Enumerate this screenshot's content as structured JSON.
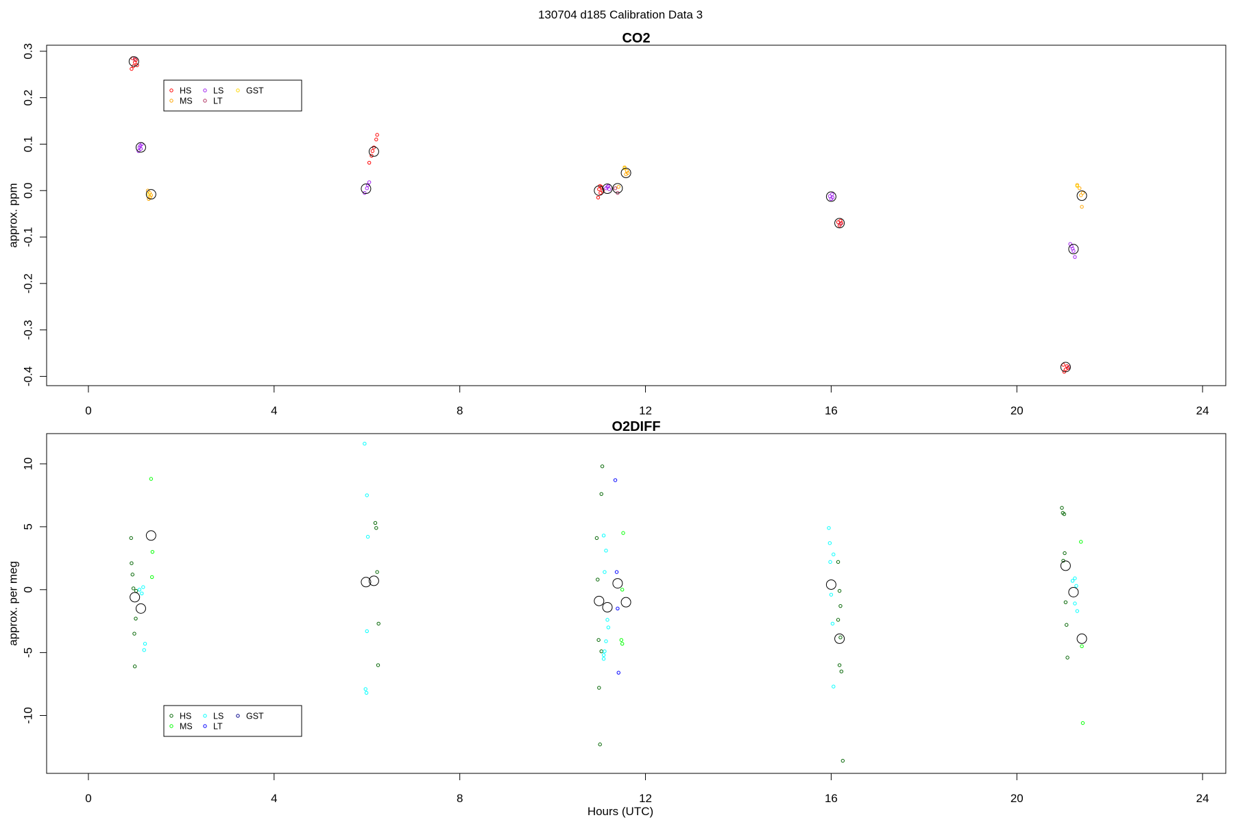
{
  "figure": {
    "title": "130704   d185   Calibration Data 3",
    "xlabel": "Hours (UTC)"
  },
  "chart_data": [
    {
      "type": "scatter",
      "title": "CO2",
      "xlabel": "",
      "ylabel": "approx. ppm",
      "xlim": [
        -0.9,
        24.5
      ],
      "ylim": [
        -0.42,
        0.313
      ],
      "xticks": [
        0,
        4,
        8,
        12,
        16,
        20,
        24
      ],
      "yticks": [
        -0.4,
        -0.3,
        -0.2,
        -0.1,
        0.0,
        0.1,
        0.2,
        0.3
      ],
      "ytick_labels": [
        "-0.4",
        "-0.3",
        "-0.2",
        "-0.1",
        "0.0",
        "0.1",
        "0.2",
        "0.3"
      ],
      "grid": false,
      "legend": {
        "placement": "top-left",
        "columns": 3,
        "entries": [
          "HS",
          "MS",
          "LS",
          "LT",
          "GST"
        ]
      },
      "series": [
        {
          "name": "HS",
          "color": "#ff0000",
          "points": [
            [
              0.93,
              0.262
            ],
            [
              0.97,
              0.268
            ],
            [
              1.0,
              0.276
            ],
            [
              1.02,
              0.281
            ],
            [
              0.95,
              0.285
            ],
            [
              1.05,
              0.27
            ],
            [
              6.05,
              0.06
            ],
            [
              6.1,
              0.075
            ],
            [
              6.15,
              0.093
            ],
            [
              6.2,
              0.11
            ],
            [
              6.22,
              0.12
            ],
            [
              6.12,
              0.085
            ],
            [
              10.98,
              -0.015
            ],
            [
              11.0,
              0.003
            ],
            [
              11.03,
              -0.005
            ],
            [
              11.05,
              0.008
            ],
            [
              11.08,
              0.0
            ],
            [
              11.02,
              0.01
            ],
            [
              16.15,
              -0.068
            ],
            [
              16.18,
              -0.075
            ],
            [
              16.2,
              -0.065
            ],
            [
              16.22,
              -0.07
            ],
            [
              21.02,
              -0.39
            ],
            [
              21.05,
              -0.385
            ],
            [
              21.08,
              -0.378
            ],
            [
              21.1,
              -0.382
            ],
            [
              21.0,
              -0.375
            ]
          ]
        },
        {
          "name": "MS",
          "color": "#ffa500",
          "points": [
            [
              1.3,
              -0.018
            ],
            [
              1.32,
              -0.005
            ],
            [
              1.35,
              -0.01
            ],
            [
              1.28,
              0.0
            ],
            [
              1.33,
              -0.014
            ],
            [
              11.42,
              0.008
            ],
            [
              11.55,
              0.05
            ],
            [
              11.58,
              0.035
            ],
            [
              11.6,
              0.042
            ],
            [
              11.62,
              0.038
            ],
            [
              21.3,
              0.012
            ],
            [
              21.35,
              0.005
            ],
            [
              21.4,
              -0.035
            ],
            [
              21.38,
              -0.01
            ],
            [
              21.42,
              -0.005
            ]
          ]
        },
        {
          "name": "LS",
          "color": "#a020f0",
          "points": [
            [
              1.08,
              0.085
            ],
            [
              1.1,
              0.093
            ],
            [
              1.12,
              0.097
            ],
            [
              1.15,
              0.1
            ],
            [
              1.13,
              0.09
            ],
            [
              5.95,
              -0.005
            ],
            [
              6.0,
              0.005
            ],
            [
              6.02,
              0.012
            ],
            [
              6.05,
              0.018
            ],
            [
              11.15,
              0.005
            ],
            [
              11.18,
              0.008
            ],
            [
              11.2,
              0.01
            ],
            [
              11.22,
              0.003
            ],
            [
              15.97,
              -0.012
            ],
            [
              16.0,
              -0.018
            ],
            [
              16.02,
              -0.008
            ],
            [
              16.03,
              -0.015
            ],
            [
              21.15,
              -0.115
            ],
            [
              21.2,
              -0.125
            ],
            [
              21.25,
              -0.143
            ],
            [
              21.22,
              -0.13
            ],
            [
              21.18,
              -0.12
            ]
          ]
        },
        {
          "name": "LT",
          "color": "#b03060",
          "points": [
            [
              1.0,
              0.283
            ],
            [
              11.35,
              0.005
            ],
            [
              11.4,
              -0.005
            ],
            [
              16.2,
              -0.072
            ],
            [
              21.12,
              -0.38
            ]
          ]
        },
        {
          "name": "GST",
          "color": "#ffd700",
          "points": [
            [
              1.3,
              -0.008
            ],
            [
              11.55,
              0.048
            ],
            [
              21.3,
              0.01
            ]
          ]
        }
      ],
      "means": [
        [
          0.98,
          0.278
        ],
        [
          1.13,
          0.093
        ],
        [
          1.35,
          -0.008
        ],
        [
          5.98,
          0.004
        ],
        [
          6.15,
          0.084
        ],
        [
          11.0,
          0.0
        ],
        [
          11.18,
          0.004
        ],
        [
          11.4,
          0.005
        ],
        [
          11.58,
          0.038
        ],
        [
          16.0,
          -0.013
        ],
        [
          16.18,
          -0.07
        ],
        [
          21.05,
          -0.38
        ],
        [
          21.22,
          -0.126
        ],
        [
          21.4,
          -0.011
        ]
      ]
    },
    {
      "type": "scatter",
      "title": "O2DIFF",
      "xlabel": "Hours (UTC)",
      "ylabel": "approx. per meg",
      "xlim": [
        -0.9,
        24.5
      ],
      "ylim": [
        -14.6,
        12.4
      ],
      "xticks": [
        0,
        4,
        8,
        12,
        16,
        20,
        24
      ],
      "yticks": [
        -10,
        -5,
        0,
        5,
        10
      ],
      "ytick_labels": [
        "-10",
        "-5",
        "0",
        "5",
        "10"
      ],
      "grid": false,
      "legend": {
        "placement": "bottom-left",
        "columns": 3,
        "entries": [
          "HS",
          "MS",
          "LS",
          "LT",
          "GST"
        ]
      },
      "series": [
        {
          "name": "HS",
          "color": "#006400",
          "points": [
            [
              0.92,
              4.1
            ],
            [
              0.93,
              2.1
            ],
            [
              0.95,
              1.2
            ],
            [
              0.97,
              0.1
            ],
            [
              0.99,
              -3.5
            ],
            [
              1.0,
              -6.1
            ],
            [
              1.02,
              -2.3
            ],
            [
              1.03,
              -0.1
            ],
            [
              6.18,
              5.3
            ],
            [
              6.2,
              4.9
            ],
            [
              6.22,
              1.4
            ],
            [
              6.25,
              -2.7
            ],
            [
              6.24,
              -6.0
            ],
            [
              10.95,
              4.1
            ],
            [
              10.97,
              0.8
            ],
            [
              10.99,
              -4.0
            ],
            [
              11.0,
              -7.8
            ],
            [
              11.02,
              -12.3
            ],
            [
              11.05,
              -4.9
            ],
            [
              11.05,
              7.6
            ],
            [
              11.07,
              9.8
            ],
            [
              16.15,
              2.2
            ],
            [
              16.18,
              -0.1
            ],
            [
              16.2,
              -1.3
            ],
            [
              16.15,
              -2.4
            ],
            [
              16.2,
              -3.8
            ],
            [
              16.18,
              -6.0
            ],
            [
              16.22,
              -6.5
            ],
            [
              16.25,
              -13.6
            ],
            [
              20.97,
              6.5
            ],
            [
              20.99,
              6.1
            ],
            [
              21.02,
              6.0
            ],
            [
              21.03,
              2.9
            ],
            [
              21.0,
              2.3
            ],
            [
              21.05,
              -1.0
            ],
            [
              21.07,
              -2.8
            ],
            [
              21.09,
              -5.4
            ]
          ]
        },
        {
          "name": "MS",
          "color": "#00ff00",
          "points": [
            [
              1.35,
              8.8
            ],
            [
              1.38,
              3.0
            ],
            [
              1.37,
              1.0
            ],
            [
              11.52,
              4.5
            ],
            [
              11.5,
              0.0
            ],
            [
              11.48,
              -4.0
            ],
            [
              11.5,
              -4.3
            ],
            [
              21.38,
              3.8
            ],
            [
              21.4,
              -4.5
            ],
            [
              21.42,
              -10.6
            ]
          ]
        },
        {
          "name": "LS",
          "color": "#00ffff",
          "points": [
            [
              1.1,
              0.0
            ],
            [
              1.15,
              -0.3
            ],
            [
              1.18,
              0.2
            ],
            [
              1.2,
              -4.8
            ],
            [
              1.22,
              -4.3
            ],
            [
              5.95,
              11.6
            ],
            [
              6.0,
              7.5
            ],
            [
              6.02,
              4.2
            ],
            [
              6.0,
              -3.3
            ],
            [
              5.97,
              -7.9
            ],
            [
              5.99,
              -8.2
            ],
            [
              11.1,
              4.3
            ],
            [
              11.15,
              3.1
            ],
            [
              11.12,
              1.4
            ],
            [
              11.18,
              -2.4
            ],
            [
              11.2,
              -3.0
            ],
            [
              11.15,
              -4.1
            ],
            [
              11.1,
              -5.2
            ],
            [
              11.1,
              -5.5
            ],
            [
              11.12,
              -4.9
            ],
            [
              15.95,
              4.9
            ],
            [
              15.97,
              3.7
            ],
            [
              15.98,
              2.2
            ],
            [
              16.0,
              -0.4
            ],
            [
              16.03,
              -2.7
            ],
            [
              16.05,
              -7.7
            ],
            [
              16.05,
              2.8
            ],
            [
              21.25,
              0.9
            ],
            [
              21.28,
              0.3
            ],
            [
              21.3,
              -1.7
            ],
            [
              21.25,
              -1.1
            ],
            [
              21.2,
              0.7
            ]
          ]
        },
        {
          "name": "LT",
          "color": "#0000ff",
          "points": [
            [
              11.35,
              8.7
            ],
            [
              11.38,
              1.4
            ],
            [
              11.4,
              -1.5
            ],
            [
              11.42,
              -6.6
            ]
          ]
        },
        {
          "name": "GST",
          "color": "#00008b",
          "points": []
        }
      ],
      "means": [
        [
          1.0,
          -0.6
        ],
        [
          1.13,
          -1.5
        ],
        [
          1.35,
          4.3
        ],
        [
          5.98,
          0.6
        ],
        [
          6.15,
          0.7
        ],
        [
          11.0,
          -0.9
        ],
        [
          11.18,
          -1.4
        ],
        [
          11.4,
          0.5
        ],
        [
          11.58,
          -1.0
        ],
        [
          16.0,
          0.4
        ],
        [
          16.18,
          -3.9
        ],
        [
          21.05,
          1.9
        ],
        [
          21.22,
          -0.2
        ],
        [
          21.4,
          -3.9
        ]
      ]
    }
  ]
}
